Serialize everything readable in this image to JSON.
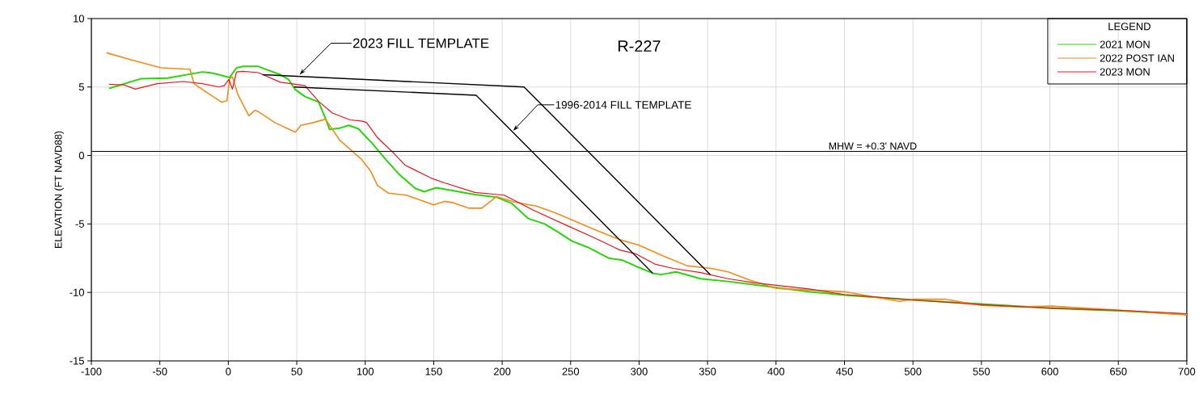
{
  "chart_data": {
    "type": "line",
    "title": "R-227",
    "ylabel": "ELEVATION (FT NAVD88)",
    "legend_title": "LEGEND",
    "legend": "top right",
    "grid": true,
    "line_style": "solid",
    "xlim": [
      -100,
      700
    ],
    "xticks": [
      -100,
      -50,
      0,
      50,
      100,
      150,
      200,
      250,
      300,
      350,
      400,
      450,
      500,
      550,
      600,
      650,
      700
    ],
    "ylim": [
      -15,
      10
    ],
    "yticks": [
      -15,
      -10,
      -5,
      0,
      5,
      10
    ],
    "series": [
      {
        "name": "2021 MON",
        "color": "#2ad40a",
        "x": [
          -87,
          -64,
          -44.5,
          -19,
          -11,
          1,
          6,
          11,
          22,
          38,
          44,
          49,
          56,
          66,
          71,
          74,
          81.5,
          88,
          95,
          105,
          115,
          125,
          136.5,
          143,
          152,
          180,
          196,
          207,
          219,
          231,
          241,
          251,
          262.5,
          278,
          288,
          298,
          310,
          316,
          327,
          345,
          365,
          384.5,
          404,
          424,
          450,
          500,
          550,
          601,
          651,
          700
        ],
        "values": [
          4.9,
          5.6,
          5.65,
          6.1,
          6.0,
          5.7,
          6.4,
          6.5,
          6.5,
          5.9,
          5.55,
          4.8,
          4.3,
          3.9,
          2.7,
          1.9,
          2.0,
          2.2,
          1.95,
          0.9,
          -0.3,
          -1.4,
          -2.4,
          -2.65,
          -2.35,
          -2.85,
          -3.05,
          -3.5,
          -4.6,
          -5.0,
          -5.6,
          -6.25,
          -6.7,
          -7.5,
          -7.65,
          -8.1,
          -8.6,
          -8.7,
          -8.5,
          -9.0,
          -9.2,
          -9.45,
          -9.7,
          -9.95,
          -10.2,
          -10.55,
          -10.85,
          -11.15,
          -11.35,
          -11.6
        ]
      },
      {
        "name": "2022 POST IAN",
        "color": "#f28c1e",
        "x": [
          -89,
          -68,
          -49,
          -29,
          -28,
          -25,
          -15,
          -5,
          -1,
          1,
          3,
          7,
          15,
          19.5,
          22,
          34,
          49,
          53,
          62,
          71,
          81.5,
          97,
          104,
          109,
          117,
          130,
          150,
          158,
          164,
          176,
          185,
          196,
          209,
          225,
          239,
          266,
          286,
          300,
          318,
          335,
          353,
          365,
          381,
          400,
          450,
          490,
          500,
          524,
          550,
          575,
          601,
          651,
          700
        ],
        "values": [
          7.5,
          6.9,
          6.4,
          6.3,
          6.3,
          5.25,
          4.55,
          3.9,
          4.0,
          5.6,
          5.75,
          4.45,
          2.9,
          3.3,
          3.2,
          2.4,
          1.7,
          2.2,
          2.4,
          2.65,
          1.1,
          -0.25,
          -1.15,
          -2.2,
          -2.75,
          -2.9,
          -3.6,
          -3.35,
          -3.45,
          -3.85,
          -3.85,
          -3.0,
          -3.4,
          -3.7,
          -4.2,
          -5.35,
          -6.15,
          -6.55,
          -7.35,
          -8.05,
          -8.25,
          -8.5,
          -9.1,
          -9.7,
          -9.95,
          -10.65,
          -10.5,
          -10.5,
          -10.95,
          -11.05,
          -11.0,
          -11.3,
          -11.65
        ]
      },
      {
        "name": "2023 MON",
        "color": "#e8141e",
        "x": [
          -87,
          -76,
          -68,
          -52,
          -33,
          -19,
          -7,
          -3,
          0.4,
          3,
          6,
          11,
          22,
          38,
          46,
          56,
          66,
          76,
          89,
          98,
          101,
          109,
          121,
          129,
          148,
          158,
          180,
          201.5,
          223,
          247,
          266,
          286,
          298,
          312,
          325,
          345,
          365,
          384.5,
          424,
          450,
          500,
          550,
          600,
          650,
          700
        ],
        "values": [
          5.2,
          5.15,
          4.85,
          5.25,
          5.4,
          5.25,
          5.0,
          5.1,
          5.55,
          4.85,
          6.1,
          6.15,
          6.05,
          5.35,
          5.25,
          5.1,
          3.95,
          3.1,
          2.6,
          2.5,
          2.4,
          1.3,
          0.15,
          -0.7,
          -1.65,
          -2.0,
          -2.7,
          -2.9,
          -4.0,
          -5.1,
          -5.95,
          -6.9,
          -7.2,
          -7.95,
          -8.25,
          -8.55,
          -9.0,
          -9.3,
          -9.75,
          -10.15,
          -10.55,
          -10.9,
          -11.15,
          -11.3,
          -11.55
        ]
      },
      {
        "color": "#000000",
        "x": [
          25,
          216,
          352
        ],
        "values": [
          5.9,
          5.0,
          -8.7
        ]
      },
      {
        "color": "#000000",
        "x": [
          48,
          181,
          310
        ],
        "values": [
          5.0,
          4.4,
          -8.6
        ]
      }
    ],
    "ref_lines": [
      {
        "axis": "y",
        "value": 0.3,
        "label": "MHW = +0.3' NAVD",
        "color": "#000000"
      }
    ],
    "annotations": [
      {
        "text": "2023 FILL TEMPLATE",
        "x": 52,
        "y": 5.9
      },
      {
        "text": "1996-2014 FILL TEMPLATE",
        "x": 208,
        "y": 1.8
      }
    ]
  }
}
